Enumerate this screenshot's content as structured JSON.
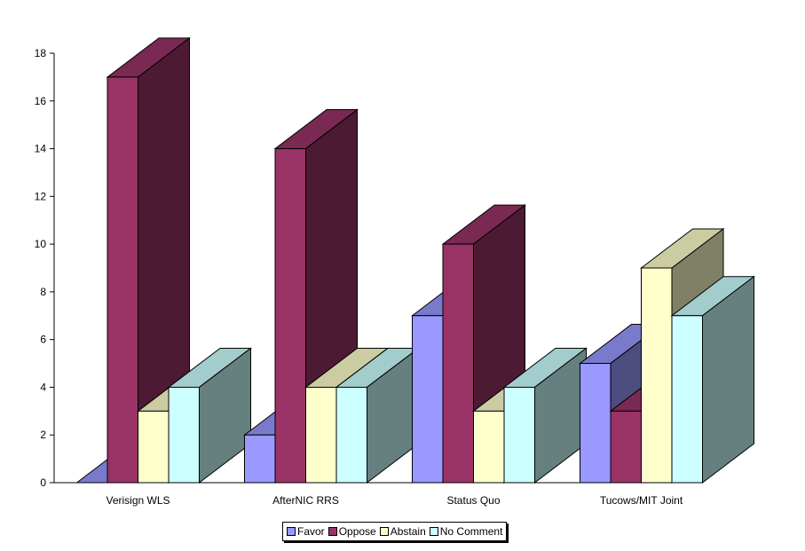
{
  "chart_data": {
    "type": "bar",
    "categories": [
      "Verisign WLS",
      "AfterNIC RRS",
      "Status Quo",
      "Tucows/MIT Joint"
    ],
    "series": [
      {
        "name": "Favor",
        "values": [
          0,
          2,
          7,
          5
        ],
        "color": "#9999ff"
      },
      {
        "name": "Oppose",
        "values": [
          17,
          14,
          10,
          3
        ],
        "color": "#993366"
      },
      {
        "name": "Abstain",
        "values": [
          3,
          4,
          3,
          9
        ],
        "color": "#ffffcc"
      },
      {
        "name": "No Comment",
        "values": [
          4,
          4,
          4,
          7
        ],
        "color": "#ccffff"
      }
    ],
    "ylim": [
      0,
      18
    ],
    "yticks": [
      0,
      2,
      4,
      6,
      8,
      10,
      12,
      14,
      16,
      18
    ],
    "title": "",
    "xlabel": "",
    "ylabel": "",
    "grid": false,
    "legend_position": "bottom",
    "style": "3d"
  }
}
